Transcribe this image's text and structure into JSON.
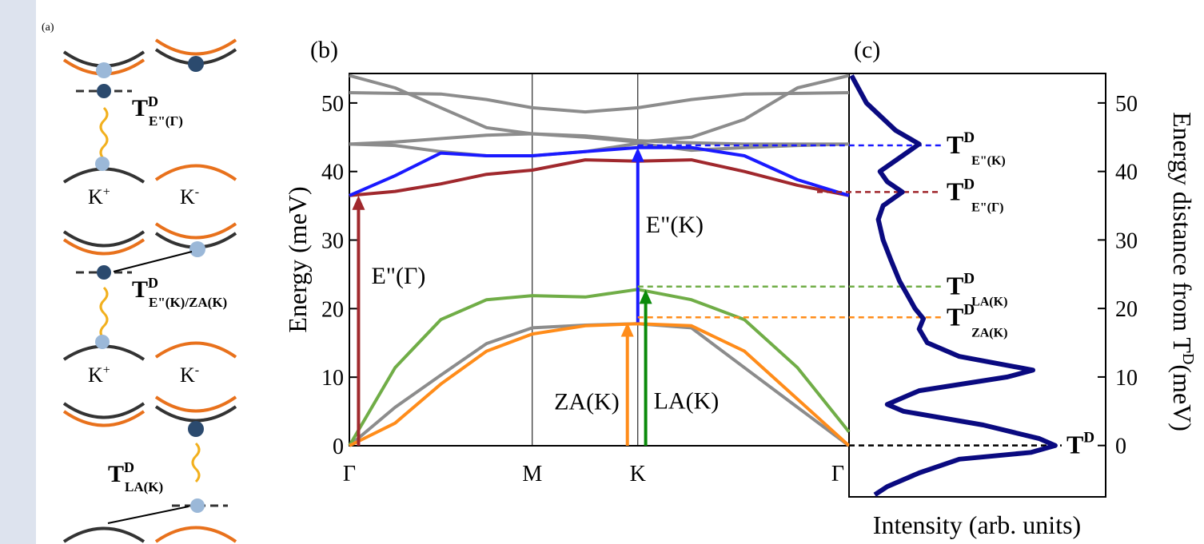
{
  "diagram": {
    "label": "(a)",
    "states": [
      {
        "main": "T",
        "sup": "D",
        "sub": "E\"(Γ)"
      },
      {
        "main": "T",
        "sup": "D",
        "sub": "E\"(K)/ZA(K)"
      },
      {
        "main": "T",
        "sup": "D",
        "sub": "LA(K)"
      }
    ],
    "valleys": [
      {
        "main": "K",
        "sup": "+"
      },
      {
        "main": "K",
        "sup": "-"
      },
      {
        "main": "K",
        "sup": "+"
      },
      {
        "main": "K",
        "sup": "-"
      }
    ]
  },
  "chart_data": [
    {
      "type": "line",
      "panel_label": "(b)",
      "ylabel": "Energy (meV)",
      "x": [
        0,
        0.25,
        0.5,
        0.75,
        1.0,
        1.29,
        1.577,
        1.87,
        2.16,
        2.45,
        2.732
      ],
      "xlim": [
        0,
        2.732
      ],
      "xticks": [
        {
          "value": 0,
          "label": "Γ"
        },
        {
          "value": 1,
          "label": "M"
        },
        {
          "value": 1.577,
          "label": "K"
        },
        {
          "value": 2.732,
          "label": "Γ"
        }
      ],
      "ylim": [
        0,
        54.3
      ],
      "yticks": [
        0,
        10,
        20,
        30,
        40,
        50
      ],
      "grid": true,
      "series": [
        {
          "color": "#8c8c8c",
          "values": [
            51.5,
            51.4,
            51.3,
            50.5,
            49.3,
            48.7,
            49.3,
            50.5,
            51.3,
            51.4,
            51.5
          ]
        },
        {
          "color": "#8c8c8c",
          "values": [
            54,
            52.2,
            49.3,
            46.4,
            45.5,
            45,
            44.3,
            45,
            47.6,
            52.2,
            54
          ]
        },
        {
          "color": "#8c8c8c",
          "values": [
            44,
            44.3,
            44.8,
            45.3,
            45.5,
            45.2,
            44.5,
            44.2,
            44,
            44,
            44
          ]
        },
        {
          "color": "#8c8c8c",
          "values": [
            44,
            43.8,
            42.9,
            42.3,
            42.3,
            42.9,
            44.1,
            43.1,
            43.5,
            43.8,
            44
          ]
        },
        {
          "color": "#a0282d",
          "values": [
            36.5,
            37.1,
            38.2,
            39.6,
            40.2,
            41.7,
            41.5,
            41.7,
            40,
            38,
            36.5
          ]
        },
        {
          "color": "#1a1aff",
          "values": [
            36.5,
            39.4,
            42.7,
            42.3,
            42.3,
            42.9,
            43.5,
            43.5,
            42.3,
            38.8,
            36.5
          ]
        },
        {
          "color": "#8c8c8c",
          "values": [
            0,
            5.6,
            10.3,
            14.9,
            17.2,
            17.6,
            17.8,
            17.2,
            11.4,
            5.6,
            0
          ]
        },
        {
          "color": "#70ad47",
          "values": [
            0,
            11.4,
            18.4,
            21.3,
            21.9,
            21.7,
            22.8,
            21.3,
            18.4,
            11.4,
            2
          ]
        },
        {
          "color": "#ff8c1a",
          "values": [
            0,
            3.3,
            9,
            13.8,
            16.3,
            17.5,
            17.8,
            17.5,
            13.8,
            6.8,
            0
          ]
        }
      ],
      "annotations": [
        {
          "text": "E\"(Γ)",
          "x": 0.05,
          "from": 0,
          "to": 36.5,
          "color": "#a0282d"
        },
        {
          "text": "E\"(K)",
          "x": 1.577,
          "from": 18,
          "to": 43.5,
          "color": "#1a1aff"
        },
        {
          "text": "ZA(K)",
          "x": 1.52,
          "from": 0,
          "to": 18,
          "color": "#ff8c1a"
        },
        {
          "text": "LA(K)",
          "x": 1.62,
          "from": 0,
          "to": 22.8,
          "color": "#0a8a0a"
        }
      ]
    },
    {
      "type": "line",
      "panel_label": "(c)",
      "xlabel": "Intensity (arb. units)",
      "ylabel": {
        "main": "Energy distance from T",
        "sup": "D",
        "unit": "(meV)"
      },
      "xscale": "log",
      "xlim": [
        1,
        1000
      ],
      "ylim": [
        -7.5,
        54.3
      ],
      "yticks": [
        0,
        10,
        20,
        30,
        40,
        50
      ],
      "series": [
        {
          "color": "#0a0a80",
          "x": [
            1.07,
            1.6,
            3.5,
            6.6,
            3.9,
            2.3,
            2.8,
            4.2,
            2.5,
            2.2,
            2.5,
            3.1,
            3.9,
            4.8,
            5.9,
            7.4,
            6.6,
            8.2,
            19.5,
            141,
            71,
            6.6,
            2.8,
            4.3,
            37,
            168,
            257,
            135,
            19.5,
            6.6,
            2.8,
            2.0
          ],
          "values": [
            54,
            50,
            46,
            44,
            42,
            40,
            38.5,
            37,
            35,
            33,
            30,
            27,
            24,
            22,
            20,
            18.5,
            17,
            15,
            13,
            11,
            10,
            8,
            6,
            5,
            3,
            1,
            0,
            -1,
            -2,
            -4,
            -6,
            -7.2
          ]
        }
      ],
      "markers": [
        {
          "main": "T",
          "sup": "D",
          "sub": "E\"(K)",
          "value": 43.8,
          "color": "#1a1aff",
          "x_start": 1.577
        },
        {
          "main": "T",
          "sup": "D",
          "sub": "E\"(Γ)",
          "value": 37,
          "color": "#a0282d"
        },
        {
          "main": "T",
          "sup": "D",
          "sub": "LA(K)",
          "value": 23.2,
          "color": "#70ad47",
          "x_start": 1.577
        },
        {
          "main": "T",
          "sup": "D",
          "sub": "ZA(K)",
          "value": 18.7,
          "color": "#ff8c1a",
          "x_start": 1.577
        },
        {
          "main": "T",
          "sup": "D",
          "value": 0,
          "color": "#000000"
        }
      ]
    }
  ]
}
